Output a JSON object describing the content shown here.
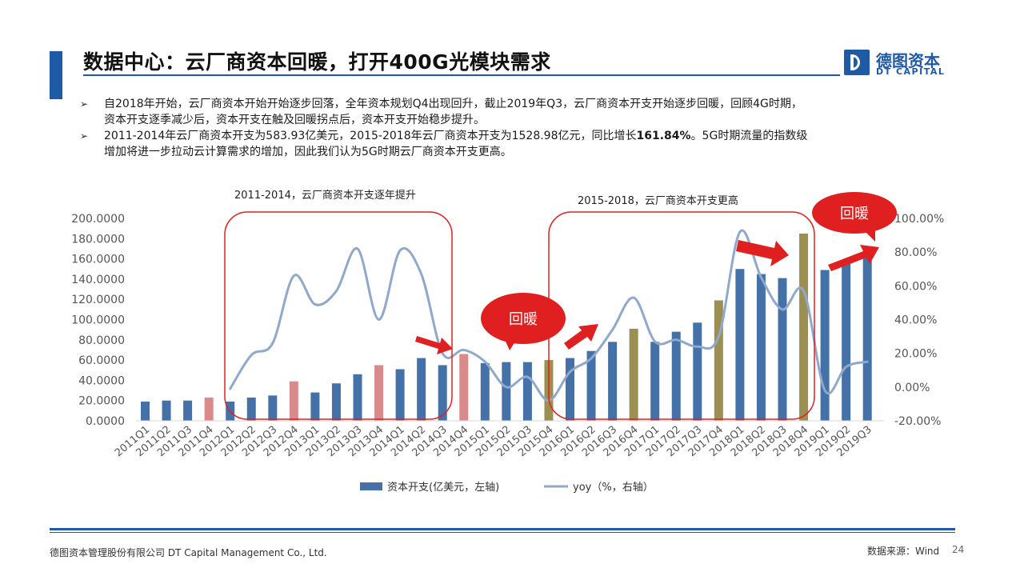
{
  "header": {
    "title": "数据中心：云厂商资本回暖，打开400G光模块需求",
    "logo_cn": "德图资本",
    "logo_en": "DT CAPITAL"
  },
  "bullets": [
    {
      "line1": "自2018年开始，云厂商资本开始开始逐步回落，全年资本规划Q4出现回升，截止2019年Q3，云厂商资本开支开始逐步回暖，回顾4G时期，",
      "line2": "资本开支逐季减少后，资本开支在触及回暖拐点后，资本开支开始稳步提升。"
    },
    {
      "pre": "2011-2014年云厂商资本开支为583.93亿美元，2015-2018年云厂商资本开支为1528.98亿元，同比增长",
      "bold": "161.84%",
      "post": "。5G时期流量的指数级",
      "line2": "增加将进一步拉动云计算需求的增加，因此我们认为5G时期云厂商资本开支更高。"
    }
  ],
  "chart_data": {
    "type": "bar",
    "categories": [
      "2011Q1",
      "2011Q2",
      "2011Q3",
      "2011Q4",
      "2012Q1",
      "2012Q2",
      "2012Q3",
      "2012Q4",
      "2013Q1",
      "2013Q2",
      "2013Q3",
      "2013Q4",
      "2014Q1",
      "2014Q2",
      "2014Q3",
      "2014Q4",
      "2015Q1",
      "2015Q2",
      "2015Q3",
      "2015Q4",
      "2016Q1",
      "2016Q2",
      "2016Q3",
      "2016Q4",
      "2017Q1",
      "2017Q2",
      "2017Q3",
      "2017Q4",
      "2018Q1",
      "2018Q2",
      "2018Q3",
      "2018Q4",
      "2019Q1",
      "2019Q2",
      "2019Q3"
    ],
    "series": [
      {
        "name": "资本开支(亿美元，左轴)",
        "axis": "left",
        "values": [
          19,
          20,
          20,
          23,
          19,
          23,
          25,
          39,
          28,
          37,
          46,
          55,
          51,
          62,
          55,
          66,
          57,
          58,
          58,
          60,
          62,
          69,
          78,
          91,
          78,
          88,
          97,
          119,
          150,
          145,
          141,
          185,
          149,
          155,
          163
        ],
        "colors": [
          "#4472a8",
          "#4472a8",
          "#4472a8",
          "#d98a8a",
          "#4472a8",
          "#4472a8",
          "#4472a8",
          "#d98a8a",
          "#4472a8",
          "#4472a8",
          "#4472a8",
          "#d98a8a",
          "#4472a8",
          "#4472a8",
          "#4472a8",
          "#d98a8a",
          "#4472a8",
          "#4472a8",
          "#4472a8",
          "#9c8f52",
          "#4472a8",
          "#4472a8",
          "#4472a8",
          "#9c8f52",
          "#4472a8",
          "#4472a8",
          "#4472a8",
          "#9c8f52",
          "#4472a8",
          "#4472a8",
          "#4472a8",
          "#9c8f52",
          "#4472a8",
          "#4472a8",
          "#4472a8"
        ]
      },
      {
        "name": "yoy（%，右轴）",
        "axis": "right",
        "type": "line",
        "color": "#8fa8cc",
        "values": [
          null,
          null,
          null,
          null,
          -1,
          19,
          26,
          66,
          49,
          57,
          82,
          40,
          81,
          67,
          20,
          22,
          15,
          0,
          6,
          -8,
          9,
          17,
          34,
          53,
          27,
          28,
          24,
          30,
          92,
          65,
          46,
          57,
          -2,
          12,
          15
        ]
      }
    ],
    "ylim_left": [
      0,
      200
    ],
    "yticks_left": [
      "0.0000",
      "20.0000",
      "40.0000",
      "60.0000",
      "80.0000",
      "100.0000",
      "120.0000",
      "140.0000",
      "160.0000",
      "180.0000",
      "200.0000"
    ],
    "ylim_right": [
      -20,
      100
    ],
    "yticks_right": [
      "-20.00%",
      "0.00%",
      "20.00%",
      "40.00%",
      "60.00%",
      "80.00%",
      "100.00%"
    ],
    "grid": false,
    "legend_position": "bottom",
    "annotations": {
      "box1_label": "2011-2014，云厂商资本开支逐年提升",
      "box2_label": "2015-2018，云厂商资本开支更高",
      "bubble_label": "回暖"
    }
  },
  "footer": {
    "company": "德图资本管理股份有限公司  DT Capital  Management  Co., Ltd.",
    "source": "数据来源：Wind",
    "page": "24"
  },
  "colors": {
    "accent": "#1f5aa6",
    "bar_blue": "#4472a8",
    "bar_pink": "#d98a8a",
    "bar_olive": "#9c8f52",
    "line": "#8fa8cc",
    "red": "#e02020"
  }
}
